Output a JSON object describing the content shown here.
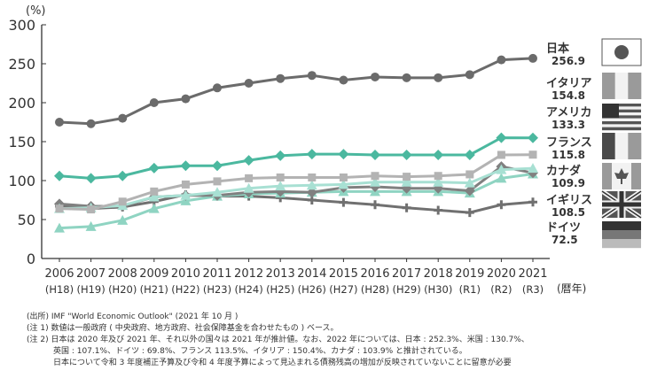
{
  "chart_data": {
    "type": "line",
    "ylabel": "(%)",
    "xlabel": "(暦年)",
    "ylim": [
      0,
      300
    ],
    "yticks": [
      0,
      50,
      100,
      150,
      200,
      250,
      300
    ],
    "grid": false,
    "legend": "right",
    "categories": [
      "2006",
      "2007",
      "2008",
      "2009",
      "2010",
      "2011",
      "2012",
      "2013",
      "2014",
      "2015",
      "2016",
      "2017",
      "2018",
      "2019",
      "2020",
      "2021"
    ],
    "categories_sub": [
      "(H18)",
      "(H19)",
      "(H20)",
      "(H21)",
      "(H22)",
      "(H23)",
      "(H24)",
      "(H25)",
      "(H26)",
      "(H27)",
      "(H28)",
      "(H29)",
      "(H30)",
      "(R1)",
      "(R2)",
      "(R3)"
    ],
    "series": [
      {
        "name": "日本",
        "value_label": "256.9",
        "color": "#6b6b6b",
        "marker": "circle",
        "flag": "japan",
        "values": [
          175,
          173,
          180,
          200,
          205,
          219,
          225,
          231,
          235,
          229,
          233,
          232,
          232,
          236,
          255,
          256.9
        ]
      },
      {
        "name": "イタリア",
        "value_label": "154.8",
        "color": "#4bb89f",
        "marker": "diamond",
        "flag": "italy",
        "values": [
          106,
          103,
          106,
          116,
          119,
          119,
          126,
          132,
          134,
          134,
          133,
          133,
          133,
          133,
          155,
          154.8
        ]
      },
      {
        "name": "アメリカ",
        "value_label": "133.3",
        "color": "#b3b3b3",
        "marker": "square",
        "flag": "usa",
        "values": [
          64,
          63,
          73,
          86,
          95,
          99,
          103,
          104,
          104,
          104,
          106,
          105,
          106,
          108,
          133,
          133.3
        ]
      },
      {
        "name": "フランス",
        "value_label": "115.8",
        "color": "#a8e0d3",
        "marker": "triangle",
        "flag": "france",
        "values": [
          64,
          65,
          68,
          79,
          81,
          85,
          90,
          93,
          94,
          95,
          98,
          98,
          98,
          97,
          114,
          115.8
        ]
      },
      {
        "name": "カナダ",
        "value_label": "109.9",
        "color": "#808080",
        "marker": "diamond",
        "flag": "canada",
        "values": [
          70,
          67,
          67,
          79,
          81,
          81,
          85,
          86,
          85,
          91,
          92,
          90,
          90,
          87,
          118,
          109.9
        ]
      },
      {
        "name": "イギリス",
        "value_label": "108.5",
        "color": "#8fd4c2",
        "marker": "triangle",
        "flag": "uk",
        "values": [
          39,
          41,
          49,
          64,
          74,
          80,
          83,
          84,
          85,
          86,
          86,
          86,
          86,
          84,
          103,
          108.5
        ]
      },
      {
        "name": "ドイツ",
        "value_label": "72.5",
        "color": "#707070",
        "marker": "cross",
        "flag": "germany",
        "values": [
          67,
          64,
          66,
          73,
          82,
          80,
          80,
          78,
          75,
          72,
          69,
          65,
          62,
          59,
          69,
          72.5
        ]
      }
    ]
  },
  "notes": [
    "(出所) IMF \"World Economic Outlook\" (2021 年 10 月 )",
    "(注 1) 数値は一般政府 ( 中央政府、地方政府、社会保障基金を合わせたもの ) ベース。",
    "(注 2) 日本は 2020 年及び 2021 年、それ以外の国々は 2021 年が推計値。なお、2022 年については、日本 : 252.3%、米国 : 130.7%、",
    "英国 : 107.1%、ドイツ : 69.8%、フランス 113.5%、イタリア : 150.4%、カナダ : 103.9% と推計されている。",
    "日本について令和 3 年度補正予算及び令和 4 年度予算によって見込まれる債務残高の増加が反映されていないことに留意が必要"
  ]
}
